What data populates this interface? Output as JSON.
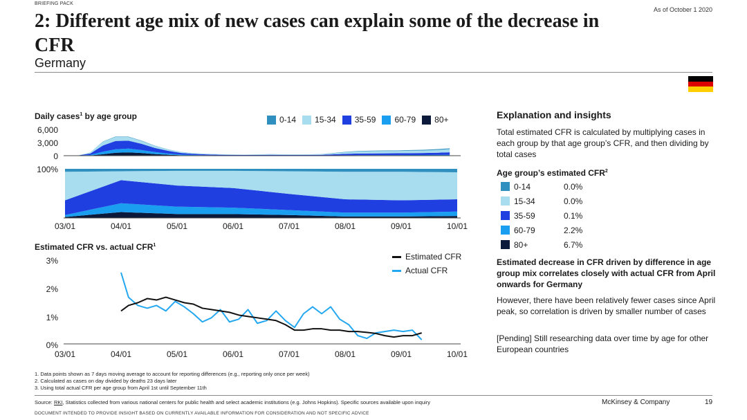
{
  "header": {
    "briefing": "BRIEFING PACK",
    "as_of": "As of October 1 2020",
    "title": "2: Different age mix of new cases can explain some of the decrease in CFR",
    "subtitle": "Germany",
    "flag": [
      "#000000",
      "#dd0000",
      "#ffce00"
    ]
  },
  "colors": {
    "age_0_14": "#2f8fbf",
    "age_15_34": "#a8dcef",
    "age_35_59": "#1f3fe0",
    "age_60_79": "#1a9ef0",
    "age_80p": "#0b1a3a",
    "estimated_line": "#111111",
    "actual_line": "#22a7f0"
  },
  "charts": {
    "daily_title": "Daily cases",
    "daily_title_sup": "1",
    "daily_title_rest": " by age group",
    "legend": [
      "0-14",
      "15-34",
      "35-59",
      "60-79",
      "80+"
    ],
    "daily_yticks": [
      "6,000",
      "3,000",
      "0"
    ],
    "share_ytick": "100%",
    "xticks": [
      "03/01",
      "04/01",
      "05/01",
      "06/01",
      "07/01",
      "08/01",
      "09/01",
      "10/01"
    ],
    "cfr_title": "Estimated CFR vs. actual CFR",
    "cfr_title_sup": "1",
    "cfr_yticks": [
      "3%",
      "2%",
      "1%",
      "0%"
    ],
    "cfr_legend": [
      "Estimated CFR",
      "Actual CFR"
    ]
  },
  "chart_data": [
    {
      "type": "area",
      "title": "Daily cases by age group",
      "x": [
        "03/01",
        "03/08",
        "03/15",
        "03/22",
        "03/29",
        "04/05",
        "04/12",
        "04/19",
        "04/26",
        "05/03",
        "05/10",
        "05/17",
        "05/24",
        "05/31",
        "06/07",
        "06/14",
        "06/21",
        "06/28",
        "07/05",
        "07/12",
        "07/19",
        "07/26",
        "08/02",
        "08/09",
        "08/16",
        "08/23",
        "08/30",
        "09/06",
        "09/13",
        "09/20",
        "09/27"
      ],
      "ylim": [
        0,
        6000
      ],
      "series": [
        {
          "name": "80+",
          "values": [
            0,
            5,
            60,
            350,
            700,
            800,
            650,
            400,
            230,
            110,
            60,
            40,
            30,
            25,
            20,
            20,
            20,
            15,
            15,
            15,
            15,
            20,
            25,
            25,
            25,
            30,
            35,
            40,
            40,
            45,
            55
          ]
        },
        {
          "name": "60-79",
          "values": [
            0,
            10,
            120,
            600,
            850,
            900,
            700,
            480,
            300,
            160,
            100,
            70,
            50,
            40,
            35,
            35,
            40,
            35,
            35,
            35,
            40,
            60,
            80,
            90,
            100,
            110,
            110,
            120,
            130,
            140,
            160
          ]
        },
        {
          "name": "35-59",
          "values": [
            0,
            25,
            350,
            1500,
            2000,
            1900,
            1500,
            1000,
            650,
            400,
            280,
            200,
            150,
            120,
            110,
            120,
            150,
            130,
            120,
            130,
            150,
            250,
            350,
            400,
            420,
            430,
            430,
            450,
            470,
            520,
            600
          ]
        },
        {
          "name": "15-34",
          "values": [
            0,
            20,
            250,
            900,
            1000,
            900,
            700,
            480,
            330,
            220,
            160,
            120,
            100,
            90,
            80,
            100,
            140,
            120,
            110,
            120,
            160,
            280,
            420,
            500,
            550,
            560,
            560,
            600,
            620,
            680,
            760
          ]
        },
        {
          "name": "0-14",
          "values": [
            0,
            2,
            20,
            60,
            80,
            90,
            80,
            60,
            40,
            30,
            25,
            20,
            15,
            15,
            15,
            18,
            25,
            20,
            20,
            22,
            30,
            60,
            90,
            110,
            120,
            120,
            120,
            140,
            150,
            170,
            190
          ]
        }
      ]
    },
    {
      "type": "area",
      "title": "Share of cases by age group",
      "x": [
        "03/01",
        "04/01",
        "05/01",
        "06/01",
        "07/01",
        "08/01",
        "09/01",
        "10/01"
      ],
      "ylim": [
        0,
        100
      ],
      "series": [
        {
          "name": "80+",
          "values": [
            2,
            12,
            8,
            8,
            6,
            3,
            3,
            4
          ]
        },
        {
          "name": "60-79",
          "values": [
            4,
            18,
            15,
            13,
            10,
            8,
            8,
            9
          ]
        },
        {
          "name": "35-59",
          "values": [
            30,
            47,
            43,
            40,
            33,
            27,
            25,
            25
          ]
        },
        {
          "name": "15-34",
          "values": [
            58,
            18,
            30,
            35,
            46,
            56,
            58,
            55
          ]
        },
        {
          "name": "0-14",
          "values": [
            6,
            5,
            4,
            4,
            5,
            6,
            6,
            7
          ]
        }
      ]
    },
    {
      "type": "line",
      "title": "Estimated CFR vs. actual CFR",
      "x": [
        "04/01",
        "04/05",
        "04/10",
        "04/15",
        "04/20",
        "04/25",
        "04/30",
        "05/05",
        "05/10",
        "05/15",
        "05/20",
        "05/25",
        "05/30",
        "06/04",
        "06/09",
        "06/14",
        "06/19",
        "06/24",
        "06/29",
        "07/04",
        "07/09",
        "07/14",
        "07/19",
        "07/24",
        "07/29",
        "08/03",
        "08/08",
        "08/13",
        "08/18",
        "08/23",
        "08/28",
        "09/02",
        "09/07",
        "09/12"
      ],
      "ylim": [
        0,
        3
      ],
      "series": [
        {
          "name": "Estimated CFR",
          "values": [
            1.2,
            1.4,
            1.5,
            1.65,
            1.6,
            1.7,
            1.6,
            1.5,
            1.45,
            1.3,
            1.25,
            1.2,
            1.15,
            1.05,
            1.0,
            0.95,
            0.9,
            0.85,
            0.7,
            0.5,
            0.5,
            0.55,
            0.55,
            0.5,
            0.5,
            0.45,
            0.45,
            0.42,
            0.38,
            0.3,
            0.25,
            0.3,
            0.3,
            0.4
          ]
        },
        {
          "name": "Actual CFR",
          "values": [
            2.6,
            1.7,
            1.4,
            1.3,
            1.4,
            1.2,
            1.55,
            1.35,
            1.1,
            0.8,
            0.95,
            1.25,
            0.8,
            0.9,
            1.25,
            0.75,
            0.85,
            1.2,
            0.85,
            0.6,
            1.1,
            1.35,
            1.1,
            1.35,
            0.9,
            0.7,
            0.3,
            0.2,
            0.4,
            0.45,
            0.5,
            0.45,
            0.5,
            0.15
          ]
        }
      ]
    }
  ],
  "panel": {
    "heading": "Explanation and insights",
    "intro": "Total estimated CFR is calculated by multiplying cases in each group by that age group’s CFR, and then dividing by total cases",
    "age_heading": "Age group’s estimated CFR",
    "age_heading_sup": "2",
    "ages": [
      {
        "label": "0-14",
        "value": "0.0%"
      },
      {
        "label": "15-34",
        "value": "0.0%"
      },
      {
        "label": "35-59",
        "value": "0.1%"
      },
      {
        "label": "60-79",
        "value": "2.2%"
      },
      {
        "label": "80+",
        "value": "6.7%"
      }
    ],
    "bold_text": "Estimated decrease in CFR driven by difference in age group mix correlates closely with actual CFR from April onwards for Germany",
    "however": "However, there have been relatively fewer cases since April peak, so correlation is driven by smaller number of cases",
    "pending": "[Pending] Still researching data over time by age for other European countries"
  },
  "footnotes": [
    "1. Data points shown as 7 days moving average to account for reporting differences (e.g., reporting only once per week)",
    "2. Calculated as cases on day divided by deaths 23 days later",
    "3. Using total actual CFR per age group from April 1st until September 11th"
  ],
  "footer": {
    "source_prefix": "Source: ",
    "source_link": "RKI",
    "source_rest": ", Statistics collected from various national centers for public health and select academic institutions (e.g. Johns Hopkins). Specific sources available upon inquiry",
    "company": "McKinsey & Company",
    "page": "19",
    "disclaimer": "DOCUMENT INTENDED TO PROVIDE INSIGHT BASED ON CURRENTLY AVAILABLE INFORMATION FOR CONSIDERATION AND NOT SPECIFIC ADVICE"
  }
}
